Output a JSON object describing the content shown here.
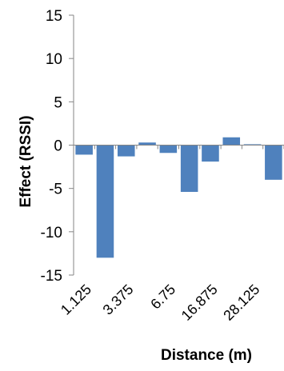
{
  "chart_data": {
    "type": "bar",
    "title": "",
    "xlabel": "Distance (m)",
    "ylabel": "Effect (RSSI)",
    "ylim": [
      -15,
      15
    ],
    "yticks": [
      "15",
      "10",
      "5",
      "0",
      "-5",
      "-10",
      "-15"
    ],
    "categories": [
      "1.125",
      "",
      "3.375",
      "",
      "6.75",
      "",
      "16.875",
      "",
      "28.125",
      ""
    ],
    "values": [
      -1.1,
      -13.0,
      -1.3,
      0.3,
      -0.9,
      -5.4,
      -1.9,
      0.9,
      0.1,
      -4.0
    ],
    "grid": false,
    "legend": "none",
    "bar_color": "#4f81bd",
    "axis_color": "#868686"
  }
}
